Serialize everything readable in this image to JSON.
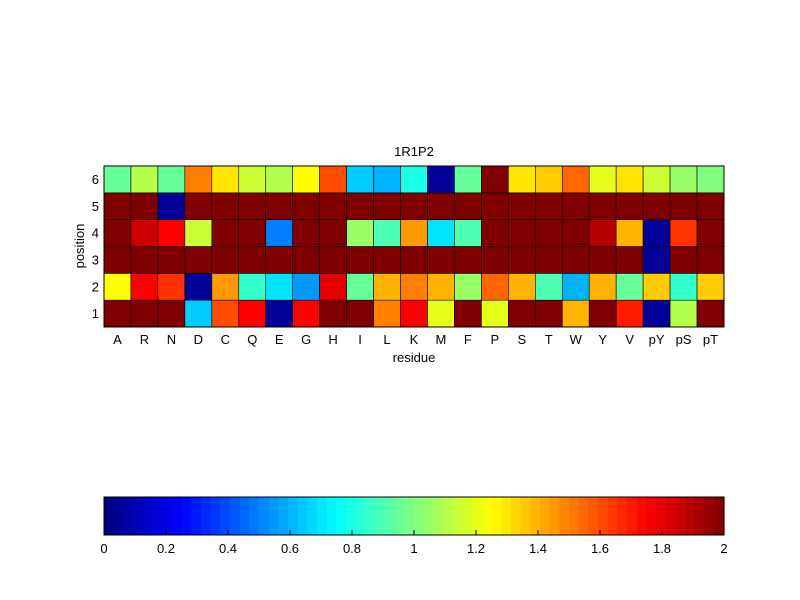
{
  "chart_data": {
    "type": "heatmap",
    "title": "1R1P2",
    "xlabel": "residue",
    "ylabel": "position",
    "x_categories": [
      "A",
      "R",
      "N",
      "D",
      "C",
      "Q",
      "E",
      "G",
      "H",
      "I",
      "L",
      "K",
      "M",
      "F",
      "P",
      "S",
      "T",
      "W",
      "Y",
      "V",
      "pY",
      "pS",
      "pT"
    ],
    "y_categories": [
      "1",
      "2",
      "3",
      "4",
      "5",
      "6"
    ],
    "values": [
      [
        2.0,
        2.0,
        2.0,
        0.65,
        1.6,
        1.75,
        0.05,
        1.75,
        2.0,
        2.0,
        1.5,
        1.75,
        1.2,
        2.0,
        1.2,
        2.0,
        2.0,
        1.4,
        2.0,
        1.7,
        0.05,
        1.1,
        2.0
      ],
      [
        1.25,
        1.75,
        1.65,
        0.05,
        1.45,
        0.85,
        0.7,
        0.55,
        1.8,
        0.95,
        1.4,
        1.5,
        1.4,
        1.05,
        1.55,
        1.4,
        0.9,
        0.6,
        1.4,
        0.95,
        1.35,
        0.85,
        1.35
      ],
      [
        2.0,
        2.0,
        2.0,
        2.0,
        2.0,
        2.0,
        2.0,
        2.0,
        2.0,
        2.0,
        2.0,
        2.0,
        2.0,
        2.0,
        2.0,
        2.0,
        2.0,
        2.0,
        2.0,
        2.0,
        0.05,
        2.0,
        2.0
      ],
      [
        2.0,
        1.85,
        1.75,
        1.15,
        2.0,
        2.0,
        0.5,
        2.0,
        2.0,
        1.05,
        0.9,
        1.45,
        0.7,
        0.9,
        2.0,
        2.0,
        2.0,
        2.0,
        1.9,
        1.4,
        0.05,
        1.65,
        2.0
      ],
      [
        2.0,
        2.0,
        0.05,
        2.0,
        2.0,
        2.0,
        2.0,
        2.0,
        2.0,
        2.0,
        2.0,
        2.0,
        2.0,
        2.0,
        2.0,
        2.0,
        2.0,
        2.0,
        2.0,
        2.0,
        2.0,
        2.0,
        2.0
      ],
      [
        0.95,
        1.1,
        0.95,
        1.5,
        1.3,
        1.15,
        1.1,
        1.25,
        1.6,
        0.65,
        0.6,
        0.8,
        0.05,
        0.95,
        2.0,
        1.3,
        1.35,
        1.55,
        1.2,
        1.3,
        1.15,
        1.05,
        1.0
      ]
    ],
    "colormap": "jet",
    "clim": [
      0,
      2
    ],
    "colorbar": {
      "orientation": "horizontal",
      "ticks": [
        "0",
        "0.2",
        "0.4",
        "0.6",
        "0.8",
        "1",
        "1.2",
        "1.4",
        "1.6",
        "1.8",
        "2"
      ]
    },
    "grid": true
  }
}
